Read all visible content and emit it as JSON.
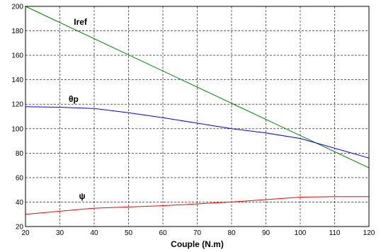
{
  "chart_data": {
    "type": "line",
    "xlabel": "Couple (N.m)",
    "ylabel": "",
    "xlim": [
      20,
      120
    ],
    "ylim": [
      20,
      200
    ],
    "x_ticks": [
      20,
      30,
      40,
      50,
      60,
      70,
      80,
      90,
      100,
      110,
      120
    ],
    "y_ticks": [
      20,
      40,
      60,
      80,
      100,
      120,
      140,
      160,
      180,
      200
    ],
    "grid": true,
    "series": [
      {
        "name": "Iref",
        "color": "#008000",
        "x": [
          20,
          120
        ],
        "y": [
          200,
          68
        ],
        "label_at": [
          36,
          185
        ]
      },
      {
        "name": "θp",
        "color": "#0000ff",
        "x": [
          20,
          30,
          40,
          50,
          60,
          70,
          80,
          90,
          100,
          110,
          120
        ],
        "y": [
          118,
          117.5,
          116.5,
          113,
          109,
          104.5,
          100,
          96.5,
          92,
          84,
          76
        ],
        "label_at": [
          34,
          122
        ]
      },
      {
        "name": "ψ",
        "color": "#ff0000",
        "x": [
          20,
          30,
          40,
          50,
          60,
          70,
          80,
          90,
          100,
          110,
          120
        ],
        "y": [
          30,
          32.5,
          35,
          36,
          37,
          38.5,
          40,
          42,
          44,
          44.5,
          44.5
        ],
        "label_at": [
          36.5,
          42.5
        ]
      }
    ]
  }
}
